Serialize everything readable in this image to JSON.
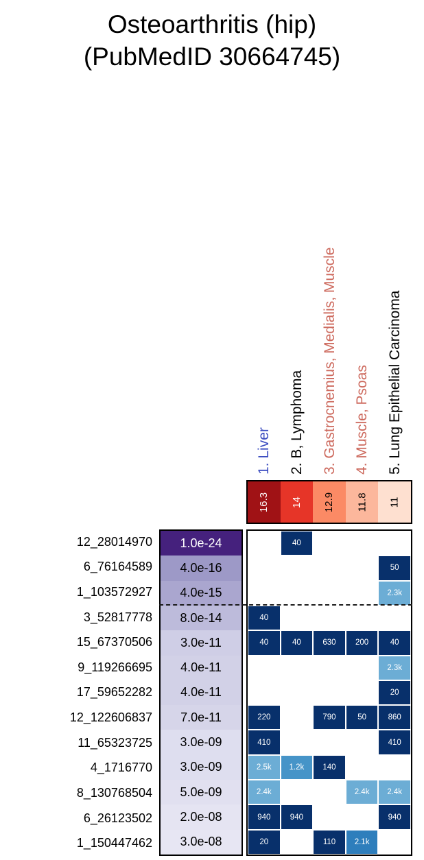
{
  "chart_data": {
    "type": "heatmap",
    "title": "Osteoarthritis (hip) (PubMedID 30664745)",
    "title_lines": [
      "Osteoarthritis (hip)",
      "(PubMedID 30664745)"
    ],
    "legend_position": "none",
    "dashed_line_after_row": 3,
    "columns": [
      {
        "label": "1. Liver",
        "label_color": "#3b4cc0",
        "score": "16.3",
        "score_bg": "#a01215",
        "score_fg": "#ffffff"
      },
      {
        "label": "2. B, Lymphoma",
        "label_color": "#000000",
        "score": "14",
        "score_bg": "#e63528",
        "score_fg": "#ffffff"
      },
      {
        "label": "3. Gastrocnemius, Medialis, Muscle",
        "label_color": "#cd6a5e",
        "score": "12.9",
        "score_bg": "#fb8a65",
        "score_fg": "#000000"
      },
      {
        "label": "4. Muscle, Psoas",
        "label_color": "#cd6a5e",
        "score": "11.8",
        "score_bg": "#fcb79c",
        "score_fg": "#000000"
      },
      {
        "label": "5. Lung Epithelial Carcinoma",
        "label_color": "#000000",
        "score": "11",
        "score_bg": "#fee0d0",
        "score_fg": "#000000"
      }
    ],
    "rows": [
      {
        "label": "12_28014970",
        "pvalue": "1.0e-24",
        "p_bg": "#45217d",
        "p_fg": "#ffffff",
        "cells": [
          null,
          {
            "v": "40",
            "bg": "#08306b"
          },
          null,
          null,
          null
        ]
      },
      {
        "label": "6_76164589",
        "pvalue": "4.0e-16",
        "p_bg": "#9d99c7",
        "p_fg": "#000000",
        "cells": [
          null,
          null,
          null,
          null,
          {
            "v": "50",
            "bg": "#08306b"
          }
        ]
      },
      {
        "label": "1_103572927",
        "pvalue": "4.0e-15",
        "p_bg": "#aaa6cf",
        "p_fg": "#000000",
        "cells": [
          null,
          null,
          null,
          null,
          {
            "v": "2.3k",
            "bg": "#6cadd5"
          }
        ]
      },
      {
        "label": "3_52817778",
        "pvalue": "8.0e-14",
        "p_bg": "#bdbbdb",
        "p_fg": "#000000",
        "cells": [
          {
            "v": "40",
            "bg": "#08306b"
          },
          null,
          null,
          null,
          null
        ]
      },
      {
        "label": "15_67370506",
        "pvalue": "3.0e-11",
        "p_bg": "#cfcee6",
        "p_fg": "#000000",
        "cells": [
          {
            "v": "40",
            "bg": "#08306b"
          },
          {
            "v": "40",
            "bg": "#08306b"
          },
          {
            "v": "630",
            "bg": "#08306b"
          },
          {
            "v": "200",
            "bg": "#08306b"
          },
          {
            "v": "40",
            "bg": "#08306b"
          }
        ]
      },
      {
        "label": "9_119266695",
        "pvalue": "4.0e-11",
        "p_bg": "#d2d1e7",
        "p_fg": "#000000",
        "cells": [
          null,
          null,
          null,
          null,
          {
            "v": "2.3k",
            "bg": "#6cadd5"
          }
        ]
      },
      {
        "label": "17_59652282",
        "pvalue": "4.0e-11",
        "p_bg": "#d2d1e7",
        "p_fg": "#000000",
        "cells": [
          null,
          null,
          null,
          null,
          {
            "v": "20",
            "bg": "#08306b"
          }
        ]
      },
      {
        "label": "12_122606837",
        "pvalue": "7.0e-11",
        "p_bg": "#d6d5e9",
        "p_fg": "#000000",
        "cells": [
          {
            "v": "220",
            "bg": "#08306b"
          },
          null,
          {
            "v": "790",
            "bg": "#08306b"
          },
          {
            "v": "50",
            "bg": "#08306b"
          },
          {
            "v": "860",
            "bg": "#08306b"
          }
        ]
      },
      {
        "label": "11_65323725",
        "pvalue": "3.0e-09",
        "p_bg": "#dedeef",
        "p_fg": "#000000",
        "cells": [
          {
            "v": "410",
            "bg": "#08306b"
          },
          null,
          null,
          null,
          {
            "v": "410",
            "bg": "#08306b"
          }
        ]
      },
      {
        "label": "4_1716770",
        "pvalue": "3.0e-09",
        "p_bg": "#dedeef",
        "p_fg": "#000000",
        "cells": [
          {
            "v": "2.5k",
            "bg": "#6cadd5"
          },
          {
            "v": "1.2k",
            "bg": "#4694c8"
          },
          {
            "v": "140",
            "bg": "#08306b"
          },
          null,
          null
        ]
      },
      {
        "label": "8_130768504",
        "pvalue": "5.0e-09",
        "p_bg": "#e1e0f0",
        "p_fg": "#000000",
        "cells": [
          {
            "v": "2.4k",
            "bg": "#6cadd5"
          },
          null,
          null,
          {
            "v": "2.4k",
            "bg": "#6cadd5"
          },
          {
            "v": "2.4k",
            "bg": "#6cadd5"
          }
        ]
      },
      {
        "label": "6_26123502",
        "pvalue": "2.0e-08",
        "p_bg": "#e5e4f2",
        "p_fg": "#000000",
        "cells": [
          {
            "v": "940",
            "bg": "#08306b"
          },
          {
            "v": "940",
            "bg": "#08306b"
          },
          null,
          null,
          {
            "v": "940",
            "bg": "#08306b"
          }
        ]
      },
      {
        "label": "1_150447462",
        "pvalue": "3.0e-08",
        "p_bg": "#e7e6f3",
        "p_fg": "#000000",
        "cells": [
          {
            "v": "20",
            "bg": "#08306b"
          },
          null,
          {
            "v": "110",
            "bg": "#08306b"
          },
          {
            "v": "2.1k",
            "bg": "#2e7ebc"
          },
          null
        ]
      }
    ]
  }
}
